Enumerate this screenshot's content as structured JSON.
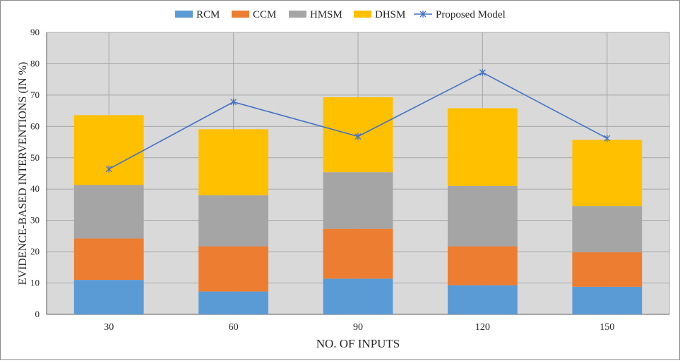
{
  "chart_data": {
    "type": "bar",
    "stacked": true,
    "categories": [
      "30",
      "60",
      "90",
      "120",
      "150"
    ],
    "series": [
      {
        "name": "RCM",
        "color": "#5b9bd5",
        "values": [
          11,
          7.3,
          11.4,
          9.3,
          8.8
        ]
      },
      {
        "name": "CCM",
        "color": "#ed7d31",
        "values": [
          13.2,
          14.4,
          15.9,
          12.4,
          11
        ]
      },
      {
        "name": "HMSM",
        "color": "#a5a5a5",
        "values": [
          17.1,
          16.3,
          18.1,
          19.3,
          14.8
        ]
      },
      {
        "name": "DHSM",
        "color": "#ffc000",
        "values": [
          22.3,
          21.1,
          23.9,
          24.8,
          21.1
        ]
      }
    ],
    "line_series": {
      "name": "Proposed Model",
      "type": "line",
      "color": "#4472c4",
      "marker": "asterisk",
      "values": [
        46.4,
        67.8,
        56.8,
        77.2,
        56.2
      ]
    },
    "title": "",
    "xlabel": "NO. OF INPUTS",
    "ylabel": "EVIDENCE-BASED INTERVENTIONS (IN %)",
    "ylim": [
      0,
      90
    ],
    "yticks": [
      "0",
      "10",
      "20",
      "30",
      "40",
      "50",
      "60",
      "70",
      "80",
      "90"
    ],
    "grid": true,
    "legend_position": "top"
  }
}
